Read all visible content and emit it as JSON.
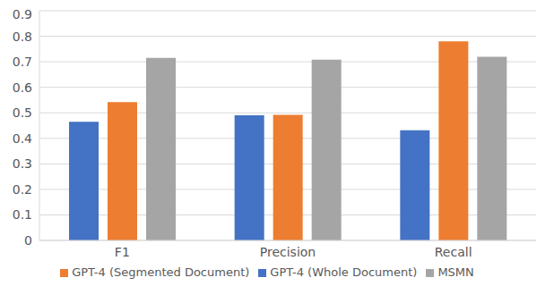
{
  "chart_data": {
    "type": "bar",
    "categories": [
      "F1",
      "Precision",
      "Recall"
    ],
    "series": [
      {
        "name": "GPT-4 (Whole Document)",
        "color": "#4472c4",
        "values": [
          0.465,
          0.49,
          0.432
        ]
      },
      {
        "name": "GPT-4 (Segmented Document)",
        "color": "#ed7d31",
        "values": [
          0.542,
          0.492,
          0.78
        ]
      },
      {
        "name": "MSMN",
        "color": "#a5a5a5",
        "values": [
          0.715,
          0.708,
          0.72
        ]
      }
    ],
    "ylim": [
      0,
      0.9
    ],
    "yticks": [
      0,
      0.1,
      0.2,
      0.3,
      0.4,
      0.5,
      0.6,
      0.7,
      0.8,
      0.9
    ],
    "grid": true,
    "legend": "bottom"
  }
}
